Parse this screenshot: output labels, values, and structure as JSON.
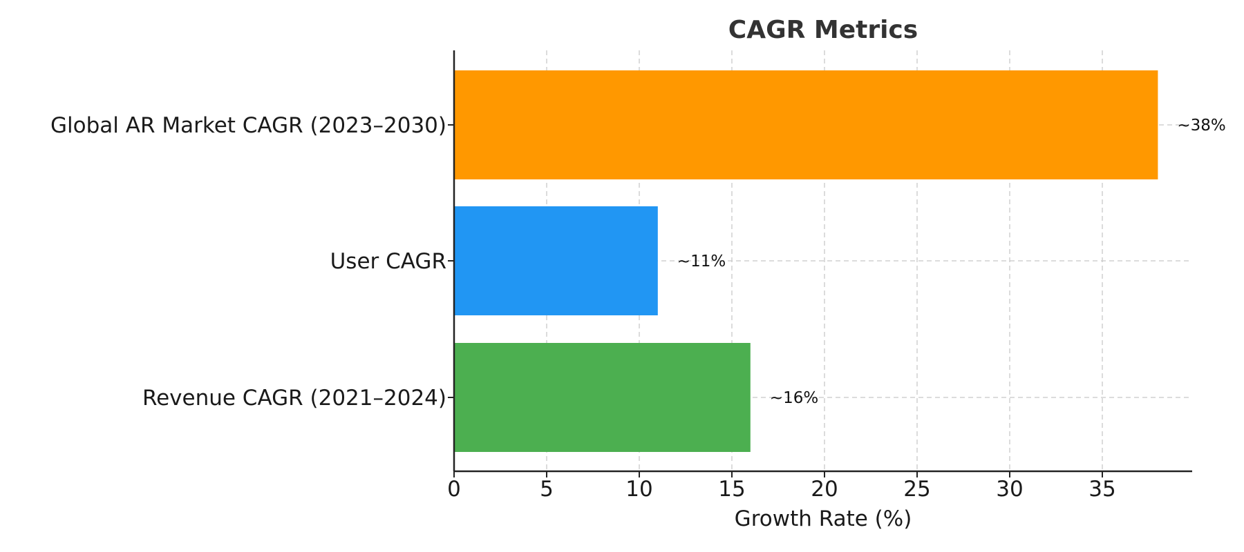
{
  "chart_data": {
    "type": "bar",
    "orientation": "horizontal",
    "title": "CAGR Metrics",
    "xlabel": "Growth Rate (%)",
    "ylabel": "",
    "xlim": [
      0,
      40
    ],
    "xticks": [
      0,
      5,
      10,
      15,
      20,
      25,
      30,
      35
    ],
    "grid": true,
    "categories": [
      "Global AR Market CAGR (2023–2030)",
      "User CAGR",
      "Revenue CAGR (2021–2024)"
    ],
    "values": [
      38,
      11,
      16
    ],
    "data_labels": [
      "~38%",
      "~11%",
      "~16%"
    ],
    "colors": [
      "#FF9800",
      "#2196F3",
      "#4CAF50"
    ]
  }
}
